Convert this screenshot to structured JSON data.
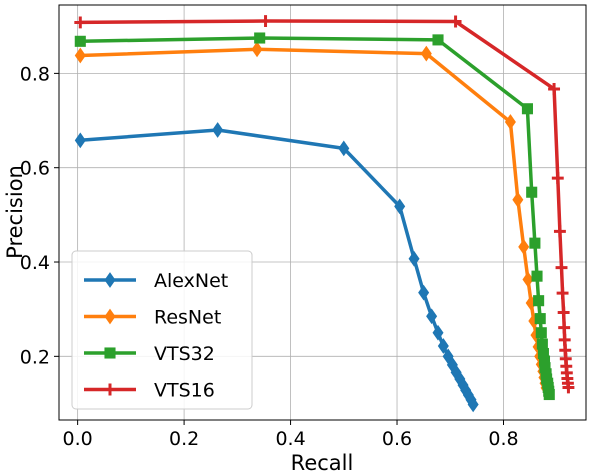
{
  "chart_data": {
    "type": "line",
    "title": "",
    "xlabel": "Recall",
    "ylabel": "Precision",
    "xlim": [
      -0.035,
      0.955
    ],
    "ylim": [
      0.065,
      0.945
    ],
    "xticks": [
      "0.0",
      "0.2",
      "0.4",
      "0.6",
      "0.8"
    ],
    "yticks": [
      "0.2",
      "0.4",
      "0.6",
      "0.8"
    ],
    "grid": true,
    "legend_position": "lower-left",
    "series": [
      {
        "name": "AlexNet",
        "color": "#1f77b4",
        "marker": "diamond",
        "x": [
          0.005,
          0.263,
          0.5,
          0.605,
          0.632,
          0.65,
          0.665,
          0.677,
          0.687,
          0.696,
          0.704,
          0.711,
          0.718,
          0.724,
          0.729,
          0.734,
          0.739,
          0.743
        ],
        "y": [
          0.658,
          0.68,
          0.641,
          0.518,
          0.407,
          0.335,
          0.285,
          0.25,
          0.222,
          0.2,
          0.182,
          0.166,
          0.152,
          0.139,
          0.128,
          0.118,
          0.108,
          0.098
        ]
      },
      {
        "name": "ResNet",
        "color": "#ff7f0e",
        "marker": "diamond",
        "x": [
          0.005,
          0.337,
          0.655,
          0.813,
          0.827,
          0.838,
          0.846,
          0.852,
          0.857,
          0.861,
          0.865,
          0.868,
          0.871,
          0.874,
          0.876,
          0.878,
          0.88
        ],
        "y": [
          0.838,
          0.851,
          0.842,
          0.697,
          0.532,
          0.432,
          0.363,
          0.313,
          0.275,
          0.245,
          0.22,
          0.2,
          0.183,
          0.168,
          0.155,
          0.143,
          0.133
        ]
      },
      {
        "name": "VTS32",
        "color": "#2ca02c",
        "marker": "square",
        "x": [
          0.005,
          0.342,
          0.677,
          0.845,
          0.853,
          0.859,
          0.863,
          0.866,
          0.869,
          0.871,
          0.873,
          0.875,
          0.877,
          0.878,
          0.88,
          0.881,
          0.883,
          0.884,
          0.885,
          0.886
        ],
        "y": [
          0.868,
          0.875,
          0.871,
          0.725,
          0.548,
          0.44,
          0.37,
          0.318,
          0.28,
          0.25,
          0.226,
          0.206,
          0.19,
          0.176,
          0.163,
          0.152,
          0.143,
          0.134,
          0.126,
          0.119
        ]
      },
      {
        "name": "VTS16",
        "color": "#d62728",
        "marker": "plus",
        "x": [
          0.005,
          0.353,
          0.71,
          0.895,
          0.902,
          0.906,
          0.909,
          0.911,
          0.913,
          0.914,
          0.915,
          0.916,
          0.917,
          0.918,
          0.919,
          0.92,
          0.921,
          0.922
        ],
        "y": [
          0.908,
          0.911,
          0.91,
          0.767,
          0.578,
          0.465,
          0.388,
          0.334,
          0.293,
          0.261,
          0.235,
          0.213,
          0.195,
          0.179,
          0.165,
          0.153,
          0.143,
          0.134
        ]
      }
    ]
  }
}
